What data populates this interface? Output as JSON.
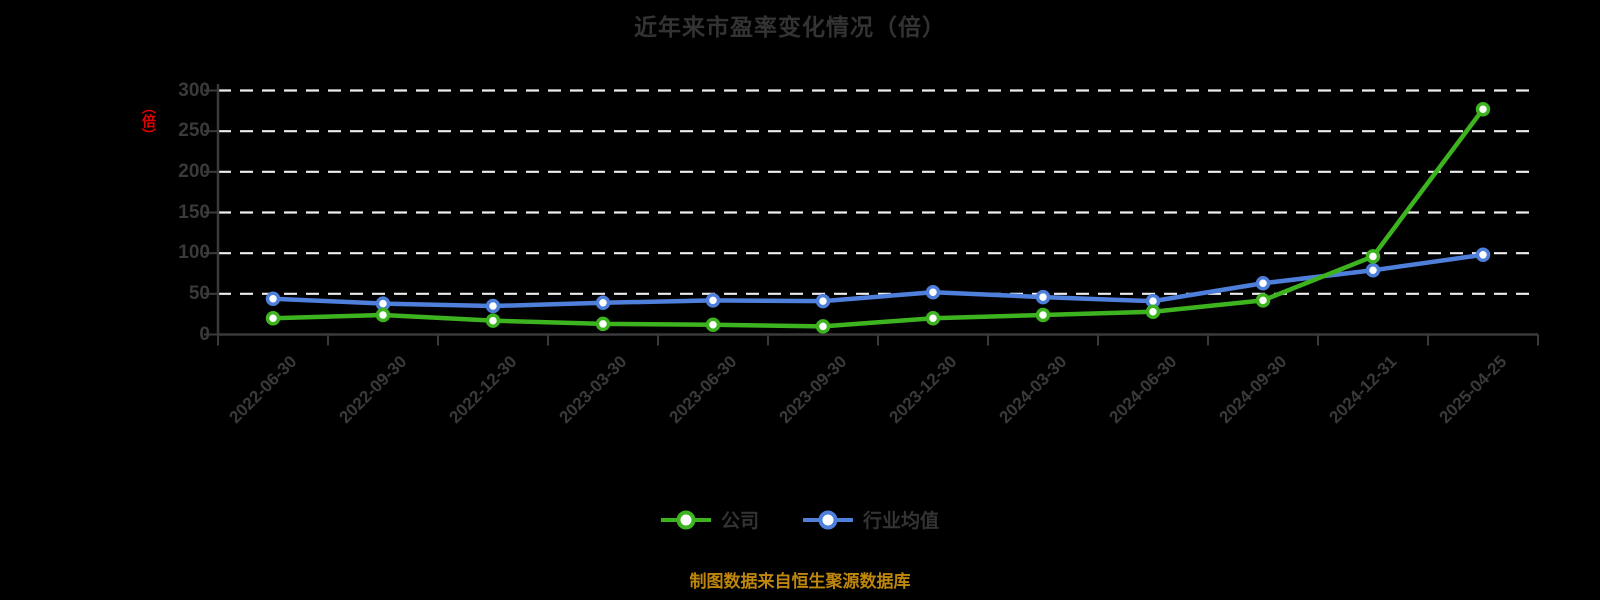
{
  "title": "近年来市盈率变化情况（倍）",
  "y_axis": {
    "unit_label": "（倍）",
    "tick_labels": [
      "0",
      "50",
      "100",
      "150",
      "200",
      "250",
      "300"
    ]
  },
  "legend": {
    "items": [
      {
        "label": "公司",
        "color": "#3db41f"
      },
      {
        "label": "行业均值",
        "color": "#4e7fdb"
      }
    ]
  },
  "source_note": "制图数据来自恒生聚源数据库",
  "colors": {
    "background": "#000000",
    "title_text": "#333333",
    "axis_text": "#3a3a3a",
    "axis_line": "#3a3a3a",
    "gridline": "#ededed",
    "company_series": "#3db41f",
    "industry_series": "#4e7fdb",
    "unit_label": "#e60000",
    "source_text": "#be860b",
    "marker_fill": "#ffffff"
  },
  "chart_data": {
    "type": "line",
    "title": "近年来市盈率变化情况（倍）",
    "categories": [
      "2022-06-30",
      "2022-09-30",
      "2022-12-30",
      "2023-03-30",
      "2023-06-30",
      "2023-09-30",
      "2023-12-30",
      "2024-03-30",
      "2024-06-30",
      "2024-09-30",
      "2024-12-31",
      "2025-04-25"
    ],
    "series": [
      {
        "name": "公司",
        "color": "#3db41f",
        "values": [
          20,
          24,
          17,
          13,
          12,
          10,
          20,
          24,
          28,
          42,
          96,
          277
        ]
      },
      {
        "name": "行业均值",
        "color": "#4e7fdb",
        "values": [
          44,
          38,
          35,
          39,
          42,
          41,
          52,
          46,
          41,
          63,
          79,
          98
        ]
      }
    ],
    "xlabel": "",
    "ylabel": "（倍）",
    "ylim": [
      0,
      300
    ],
    "yticks": [
      0,
      50,
      100,
      150,
      200,
      250,
      300
    ],
    "grid": "horizontal-dashed",
    "legend_position": "bottom",
    "marker": "circle-white-fill"
  }
}
